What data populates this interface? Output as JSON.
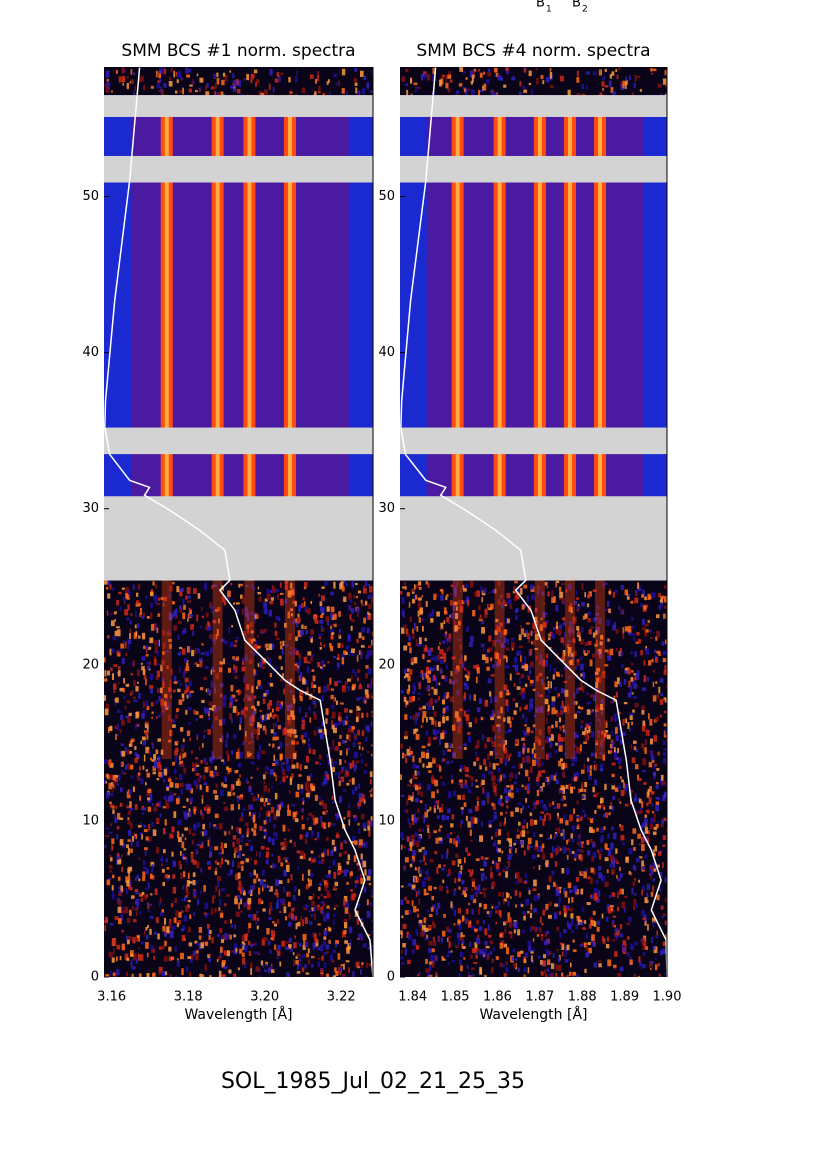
{
  "header_labels": [
    {
      "text": "B",
      "subscript": "1"
    },
    {
      "text": "B",
      "subscript": "2"
    }
  ],
  "caption": "SOL_1985_Jul_02_21_25_35",
  "chart_data": [
    {
      "type": "spectrogram",
      "title": "SMM BCS #1 norm. spectra",
      "x_label": "Wavelength [Å]",
      "xlim": [
        3.158,
        3.2283
      ],
      "xticks": [
        {
          "value": 3.16,
          "label": "3.16"
        },
        {
          "value": 3.18,
          "label": "3.18"
        },
        {
          "value": 3.2,
          "label": "3.20"
        },
        {
          "value": 3.22,
          "label": "3.22"
        }
      ],
      "ylim": [
        0,
        58.3
      ],
      "yticks": [
        0,
        10,
        20,
        30,
        40,
        50
      ],
      "gaps": [
        [
          55.1,
          56.5
        ],
        [
          50.9,
          52.6
        ],
        [
          33.5,
          35.2
        ],
        [
          25.4,
          30.8
        ]
      ],
      "gap_color": "#d3d3d3",
      "spectral_lines": [
        3.1744,
        3.1877,
        3.196,
        3.2066
      ],
      "line_color": "#ff4a12",
      "light_curve": {
        "color": "#ffffff",
        "x": [
          3.1673,
          3.1647,
          3.1608,
          3.1584,
          3.1582,
          3.1595,
          3.1647,
          3.1699,
          3.1686,
          3.1752,
          3.183,
          3.1896,
          3.1909,
          3.1883,
          3.1922,
          3.1948,
          3.2001,
          3.2053,
          3.2092,
          3.2145,
          3.2158,
          3.2171,
          3.2184,
          3.221,
          3.2236,
          3.2262,
          3.2236,
          3.2275,
          3.2283
        ],
        "y": [
          58.26,
          51.02,
          43.34,
          36.94,
          35.21,
          33.48,
          31.82,
          31.37,
          30.86,
          29.9,
          28.62,
          27.34,
          25.42,
          24.78,
          23.5,
          21.58,
          20.29,
          19.01,
          18.37,
          17.73,
          15.81,
          13.89,
          11.33,
          9.41,
          8.13,
          6.21,
          4.29,
          2.37,
          0
        ]
      }
    },
    {
      "type": "spectrogram",
      "title": "SMM BCS #4 norm. spectra",
      "x_label": "Wavelength [Å]",
      "xlim": [
        1.837,
        1.9
      ],
      "xticks": [
        {
          "value": 1.84,
          "label": "1.84"
        },
        {
          "value": 1.85,
          "label": "1.85"
        },
        {
          "value": 1.86,
          "label": "1.86"
        },
        {
          "value": 1.87,
          "label": "1.87"
        },
        {
          "value": 1.88,
          "label": "1.88"
        },
        {
          "value": 1.89,
          "label": "1.89"
        },
        {
          "value": 1.9,
          "label": "1.90"
        }
      ],
      "ylim": [
        0,
        58.3
      ],
      "yticks": [
        0,
        10,
        20,
        30,
        40,
        50
      ],
      "gaps": [
        [
          55.1,
          56.5
        ],
        [
          50.9,
          52.6
        ],
        [
          33.5,
          35.2
        ],
        [
          25.4,
          30.8
        ]
      ],
      "gap_color": "#d3d3d3",
      "spectral_lines": [
        1.8506,
        1.8605,
        1.87,
        1.8771,
        1.8842
      ],
      "line_color": "#ff4a12",
      "light_curve": {
        "color": "#ffffff",
        "x": [
          1.8454,
          1.8431,
          1.8395,
          1.8374,
          1.8372,
          1.8383,
          1.8431,
          1.8478,
          1.8466,
          1.8525,
          1.8596,
          1.8655,
          1.8667,
          1.8643,
          1.8679,
          1.8703,
          1.875,
          1.8797,
          1.8833,
          1.888,
          1.8892,
          1.8904,
          1.8915,
          1.8939,
          1.8963,
          1.8986,
          1.8963,
          1.8998,
          1.9
        ],
        "y": [
          58.26,
          51.02,
          43.34,
          36.94,
          35.21,
          33.48,
          31.82,
          31.37,
          30.86,
          29.9,
          28.62,
          27.34,
          25.42,
          24.78,
          23.5,
          21.58,
          20.29,
          19.01,
          18.37,
          17.73,
          15.81,
          13.89,
          11.33,
          9.41,
          8.13,
          6.21,
          4.29,
          2.37,
          0
        ]
      }
    }
  ]
}
